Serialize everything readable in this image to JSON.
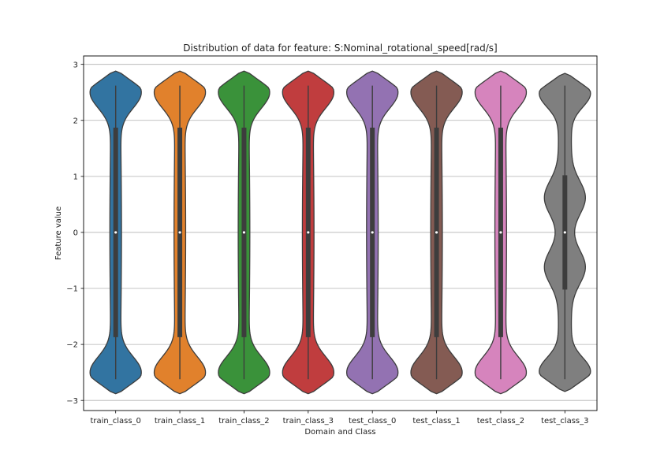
{
  "chart_data": {
    "type": "violin",
    "title": "Distribution of data for feature: S:Nominal_rotational_speed[rad/s]",
    "xlabel": "Domain and Class",
    "ylabel": "Feature value",
    "ylim": [
      -3.18,
      3.15
    ],
    "yticks": [
      3,
      2,
      1,
      0,
      -1,
      -2,
      -3
    ],
    "ytick_labels": [
      "3",
      "2",
      "1",
      "0",
      "−1",
      "−2",
      "−3"
    ],
    "grid": "horizontal",
    "categories": [
      "train_class_0",
      "train_class_1",
      "train_class_2",
      "train_class_3",
      "test_class_0",
      "test_class_1",
      "test_class_2",
      "test_class_3"
    ],
    "series": [
      {
        "category": "train_class_0",
        "color": "#3274a1",
        "min": -2.62,
        "q1": -1.87,
        "median": 0.0,
        "q3": 1.87,
        "max": 2.62,
        "kde_max": 2.88,
        "kde_min": -2.88,
        "shape": "bimodal-edges"
      },
      {
        "category": "train_class_1",
        "color": "#e1812c",
        "min": -2.62,
        "q1": -1.87,
        "median": 0.0,
        "q3": 1.87,
        "max": 2.62,
        "kde_max": 2.88,
        "kde_min": -2.88,
        "shape": "bimodal-edges"
      },
      {
        "category": "train_class_2",
        "color": "#3a923a",
        "min": -2.62,
        "q1": -1.87,
        "median": 0.0,
        "q3": 1.87,
        "max": 2.62,
        "kde_max": 2.88,
        "kde_min": -2.88,
        "shape": "bimodal-edges"
      },
      {
        "category": "train_class_3",
        "color": "#c03d3e",
        "min": -2.62,
        "q1": -1.87,
        "median": 0.0,
        "q3": 1.87,
        "max": 2.62,
        "kde_max": 2.88,
        "kde_min": -2.88,
        "shape": "bimodal-edges"
      },
      {
        "category": "test_class_0",
        "color": "#9372b2",
        "min": -2.62,
        "q1": -1.87,
        "median": 0.0,
        "q3": 1.87,
        "max": 2.62,
        "kde_max": 2.88,
        "kde_min": -2.88,
        "shape": "bimodal-edges"
      },
      {
        "category": "test_class_1",
        "color": "#845b53",
        "min": -2.62,
        "q1": -1.87,
        "median": 0.0,
        "q3": 1.87,
        "max": 2.62,
        "kde_max": 2.88,
        "kde_min": -2.88,
        "shape": "bimodal-edges"
      },
      {
        "category": "test_class_2",
        "color": "#d684bd",
        "min": -2.62,
        "q1": -1.87,
        "median": 0.0,
        "q3": 1.87,
        "max": 2.62,
        "kde_max": 2.88,
        "kde_min": -2.88,
        "shape": "bimodal-edges"
      },
      {
        "category": "test_class_3",
        "color": "#7f7f7f",
        "min": -2.62,
        "q1": -1.02,
        "median": 0.0,
        "q3": 1.02,
        "max": 2.62,
        "kde_max": 2.84,
        "kde_min": -2.84,
        "shape": "four-modes"
      }
    ]
  }
}
